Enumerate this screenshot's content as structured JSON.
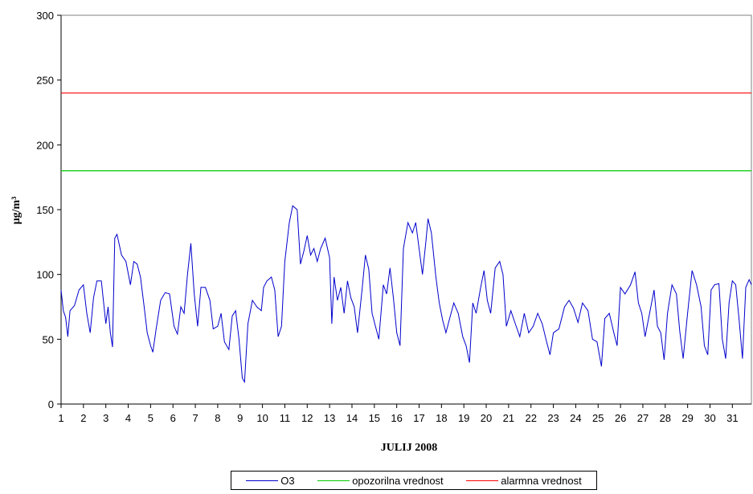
{
  "chart_data": {
    "type": "line",
    "title": "",
    "xlabel": "JULIJ 2008",
    "ylabel": "µg/m³",
    "ylim": [
      0,
      300
    ],
    "yticks": [
      0,
      50,
      100,
      150,
      200,
      250,
      300
    ],
    "xlim": [
      1,
      31.85
    ],
    "xticks": [
      "1",
      "2",
      "3",
      "4",
      "5",
      "6",
      "7",
      "8",
      "9",
      "10",
      "11",
      "12",
      "13",
      "14",
      "15",
      "16",
      "17",
      "18",
      "19",
      "20",
      "21",
      "22",
      "23",
      "24",
      "25",
      "26",
      "27",
      "28",
      "29",
      "30",
      "31"
    ],
    "grid": false,
    "legend_position": "bottom",
    "series": [
      {
        "name": "O3",
        "color": "#0000cc",
        "data": [
          [
            1.0,
            88
          ],
          [
            1.1,
            72
          ],
          [
            1.2,
            67
          ],
          [
            1.3,
            52
          ],
          [
            1.4,
            72
          ],
          [
            1.6,
            76
          ],
          [
            1.8,
            88
          ],
          [
            2.0,
            92
          ],
          [
            2.15,
            70
          ],
          [
            2.3,
            55
          ],
          [
            2.45,
            82
          ],
          [
            2.6,
            95
          ],
          [
            2.8,
            95
          ],
          [
            3.0,
            62
          ],
          [
            3.1,
            75
          ],
          [
            3.2,
            55
          ],
          [
            3.3,
            44
          ],
          [
            3.4,
            128
          ],
          [
            3.5,
            131
          ],
          [
            3.7,
            115
          ],
          [
            3.9,
            110
          ],
          [
            4.1,
            92
          ],
          [
            4.25,
            110
          ],
          [
            4.4,
            108
          ],
          [
            4.55,
            98
          ],
          [
            4.7,
            77
          ],
          [
            4.85,
            55
          ],
          [
            5.0,
            45
          ],
          [
            5.1,
            40
          ],
          [
            5.25,
            58
          ],
          [
            5.45,
            80
          ],
          [
            5.65,
            86
          ],
          [
            5.85,
            85
          ],
          [
            6.05,
            60
          ],
          [
            6.2,
            54
          ],
          [
            6.35,
            75
          ],
          [
            6.5,
            70
          ],
          [
            6.65,
            100
          ],
          [
            6.8,
            124
          ],
          [
            6.95,
            85
          ],
          [
            7.1,
            60
          ],
          [
            7.25,
            90
          ],
          [
            7.45,
            90
          ],
          [
            7.65,
            80
          ],
          [
            7.8,
            58
          ],
          [
            8.0,
            60
          ],
          [
            8.15,
            70
          ],
          [
            8.3,
            48
          ],
          [
            8.5,
            42
          ],
          [
            8.65,
            68
          ],
          [
            8.8,
            72
          ],
          [
            8.95,
            50
          ],
          [
            9.1,
            20
          ],
          [
            9.2,
            17
          ],
          [
            9.35,
            62
          ],
          [
            9.55,
            80
          ],
          [
            9.75,
            75
          ],
          [
            9.95,
            72
          ],
          [
            10.05,
            90
          ],
          [
            10.2,
            95
          ],
          [
            10.4,
            98
          ],
          [
            10.55,
            88
          ],
          [
            10.7,
            52
          ],
          [
            10.85,
            60
          ],
          [
            11.0,
            110
          ],
          [
            11.2,
            140
          ],
          [
            11.35,
            153
          ],
          [
            11.55,
            150
          ],
          [
            11.7,
            108
          ],
          [
            11.85,
            118
          ],
          [
            12.0,
            130
          ],
          [
            12.15,
            115
          ],
          [
            12.3,
            120
          ],
          [
            12.45,
            110
          ],
          [
            12.6,
            120
          ],
          [
            12.8,
            128
          ],
          [
            13.0,
            113
          ],
          [
            13.1,
            62
          ],
          [
            13.2,
            98
          ],
          [
            13.35,
            80
          ],
          [
            13.5,
            90
          ],
          [
            13.65,
            70
          ],
          [
            13.8,
            95
          ],
          [
            13.95,
            82
          ],
          [
            14.1,
            75
          ],
          [
            14.25,
            55
          ],
          [
            14.45,
            88
          ],
          [
            14.6,
            115
          ],
          [
            14.75,
            104
          ],
          [
            14.9,
            70
          ],
          [
            15.05,
            60
          ],
          [
            15.2,
            50
          ],
          [
            15.4,
            92
          ],
          [
            15.55,
            85
          ],
          [
            15.7,
            105
          ],
          [
            15.85,
            82
          ],
          [
            16.0,
            55
          ],
          [
            16.15,
            45
          ],
          [
            16.3,
            120
          ],
          [
            16.5,
            140
          ],
          [
            16.7,
            132
          ],
          [
            16.85,
            140
          ],
          [
            17.0,
            120
          ],
          [
            17.15,
            100
          ],
          [
            17.3,
            125
          ],
          [
            17.4,
            143
          ],
          [
            17.55,
            132
          ],
          [
            17.75,
            98
          ],
          [
            17.9,
            78
          ],
          [
            18.05,
            65
          ],
          [
            18.2,
            55
          ],
          [
            18.35,
            65
          ],
          [
            18.55,
            78
          ],
          [
            18.75,
            70
          ],
          [
            18.95,
            52
          ],
          [
            19.1,
            45
          ],
          [
            19.25,
            32
          ],
          [
            19.4,
            78
          ],
          [
            19.55,
            70
          ],
          [
            19.75,
            90
          ],
          [
            19.9,
            103
          ],
          [
            20.05,
            80
          ],
          [
            20.2,
            70
          ],
          [
            20.4,
            105
          ],
          [
            20.6,
            110
          ],
          [
            20.75,
            100
          ],
          [
            20.9,
            60
          ],
          [
            21.1,
            72
          ],
          [
            21.3,
            62
          ],
          [
            21.5,
            52
          ],
          [
            21.7,
            70
          ],
          [
            21.9,
            55
          ],
          [
            22.1,
            60
          ],
          [
            22.3,
            70
          ],
          [
            22.5,
            62
          ],
          [
            22.7,
            48
          ],
          [
            22.85,
            38
          ],
          [
            23.0,
            55
          ],
          [
            23.25,
            58
          ],
          [
            23.5,
            75
          ],
          [
            23.7,
            80
          ],
          [
            23.9,
            74
          ],
          [
            24.1,
            63
          ],
          [
            24.3,
            78
          ],
          [
            24.55,
            72
          ],
          [
            24.75,
            50
          ],
          [
            24.95,
            48
          ],
          [
            25.15,
            29
          ],
          [
            25.3,
            66
          ],
          [
            25.5,
            70
          ],
          [
            25.7,
            55
          ],
          [
            25.85,
            45
          ],
          [
            26.0,
            90
          ],
          [
            26.2,
            85
          ],
          [
            26.45,
            92
          ],
          [
            26.65,
            102
          ],
          [
            26.8,
            78
          ],
          [
            26.95,
            70
          ],
          [
            27.1,
            52
          ],
          [
            27.3,
            70
          ],
          [
            27.5,
            88
          ],
          [
            27.65,
            60
          ],
          [
            27.8,
            55
          ],
          [
            27.95,
            34
          ],
          [
            28.1,
            70
          ],
          [
            28.3,
            92
          ],
          [
            28.5,
            85
          ],
          [
            28.65,
            56
          ],
          [
            28.8,
            35
          ],
          [
            29.0,
            70
          ],
          [
            29.2,
            103
          ],
          [
            29.4,
            92
          ],
          [
            29.6,
            75
          ],
          [
            29.75,
            45
          ],
          [
            29.9,
            38
          ],
          [
            30.05,
            88
          ],
          [
            30.2,
            92
          ],
          [
            30.4,
            93
          ],
          [
            30.55,
            50
          ],
          [
            30.7,
            35
          ],
          [
            30.85,
            78
          ],
          [
            31.0,
            95
          ],
          [
            31.15,
            92
          ],
          [
            31.3,
            65
          ],
          [
            31.45,
            35
          ],
          [
            31.6,
            90
          ],
          [
            31.75,
            96
          ],
          [
            31.85,
            92
          ]
        ]
      },
      {
        "name": "opozorilna vrednost",
        "color": "#00cc00",
        "value": 180
      },
      {
        "name": "alarmna vrednost",
        "color": "#ff0000",
        "value": 240
      }
    ]
  }
}
